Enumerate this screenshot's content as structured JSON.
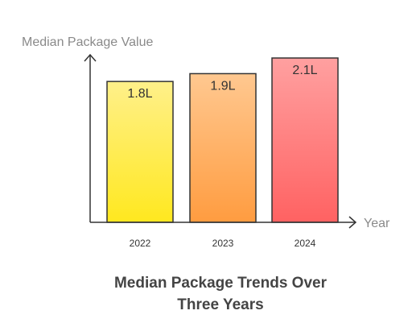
{
  "chart_data": {
    "type": "bar",
    "title": "Median Package Trends Over Three Years",
    "title_lines": [
      "Median Package Trends Over",
      "Three Years"
    ],
    "ylabel": "Median Package Value",
    "xlabel": "Year",
    "categories": [
      "2022",
      "2023",
      "2024"
    ],
    "values": [
      1.8,
      1.9,
      2.1
    ],
    "value_labels": [
      "1.8L",
      "1.9L",
      "2.1L"
    ],
    "ylim": [
      0,
      2.1
    ],
    "grid": false,
    "bar_colors": [
      {
        "top": "#fff08a",
        "bottom": "#ffe81f"
      },
      {
        "top": "#ffc890",
        "bottom": "#ff9c40"
      },
      {
        "top": "#ffa0a0",
        "bottom": "#ff6262"
      }
    ]
  }
}
